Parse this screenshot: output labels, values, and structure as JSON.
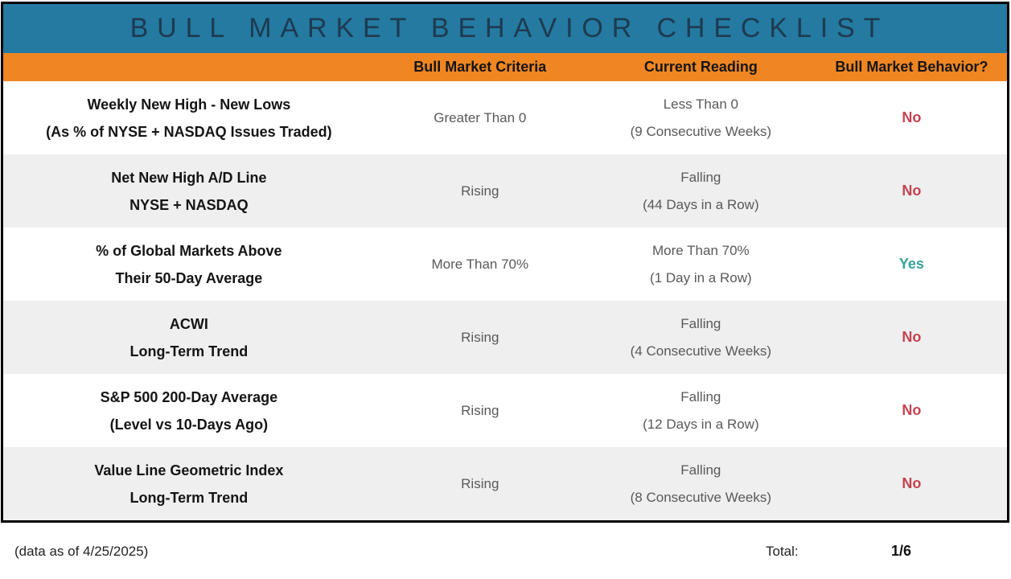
{
  "chart_data": {
    "type": "table",
    "title": "BULL MARKET BEHAVIOR CHECKLIST",
    "columns": [
      "",
      "Bull Market Criteria",
      "Current Reading",
      "Bull Market Behavior?"
    ],
    "rows": [
      {
        "indicator_line1": "Weekly New High - New Lows",
        "indicator_line2": "(As % of NYSE + NASDAQ Issues Traded)",
        "criteria": "Greater Than 0",
        "reading_line1": "Less Than 0",
        "reading_line2": "(9 Consecutive Weeks)",
        "behavior": "No",
        "behavior_color": "#C44250"
      },
      {
        "indicator_line1": "Net New High A/D Line",
        "indicator_line2": "NYSE + NASDAQ",
        "criteria": "Rising",
        "reading_line1": "Falling",
        "reading_line2": "(44 Days in a Row)",
        "behavior": "No",
        "behavior_color": "#C44250"
      },
      {
        "indicator_line1": "% of Global Markets Above",
        "indicator_line2": "Their 50-Day Average",
        "criteria": "More Than 70%",
        "reading_line1": "More Than 70%",
        "reading_line2": "(1 Day in a Row)",
        "behavior": "Yes",
        "behavior_color": "#36A39A"
      },
      {
        "indicator_line1": "ACWI",
        "indicator_line2": "Long-Term Trend",
        "criteria": "Rising",
        "reading_line1": "Falling",
        "reading_line2": "(4 Consecutive Weeks)",
        "behavior": "No",
        "behavior_color": "#C44250"
      },
      {
        "indicator_line1": "S&P 500 200-Day Average",
        "indicator_line2": "(Level vs 10-Days Ago)",
        "criteria": "Rising",
        "reading_line1": "Falling",
        "reading_line2": "(12 Days in a Row)",
        "behavior": "No",
        "behavior_color": "#C44250"
      },
      {
        "indicator_line1": "Value Line Geometric Index",
        "indicator_line2": "Long-Term Trend",
        "criteria": "Rising",
        "reading_line1": "Falling",
        "reading_line2": "(8 Consecutive Weeks)",
        "behavior": "No",
        "behavior_color": "#C44250"
      }
    ],
    "footer": {
      "as_of": "(data as of 4/25/2025)",
      "total_label": "Total:",
      "total_value": "1/6"
    },
    "layout": {
      "legend_position": "none",
      "grid": "off",
      "row_striping": "alternating white / light gray"
    }
  },
  "colors": {
    "title_bar_bg": "#247AA1",
    "title_text": "#1E3A50",
    "header_row_bg": "#F08622",
    "header_text": "#151515",
    "alt_row_bg": "#EFEFEF",
    "body_text": "#141414",
    "muted_text": "#595959",
    "yes_green": "#36A39A",
    "no_red": "#C44250",
    "table_border": "#000000"
  }
}
